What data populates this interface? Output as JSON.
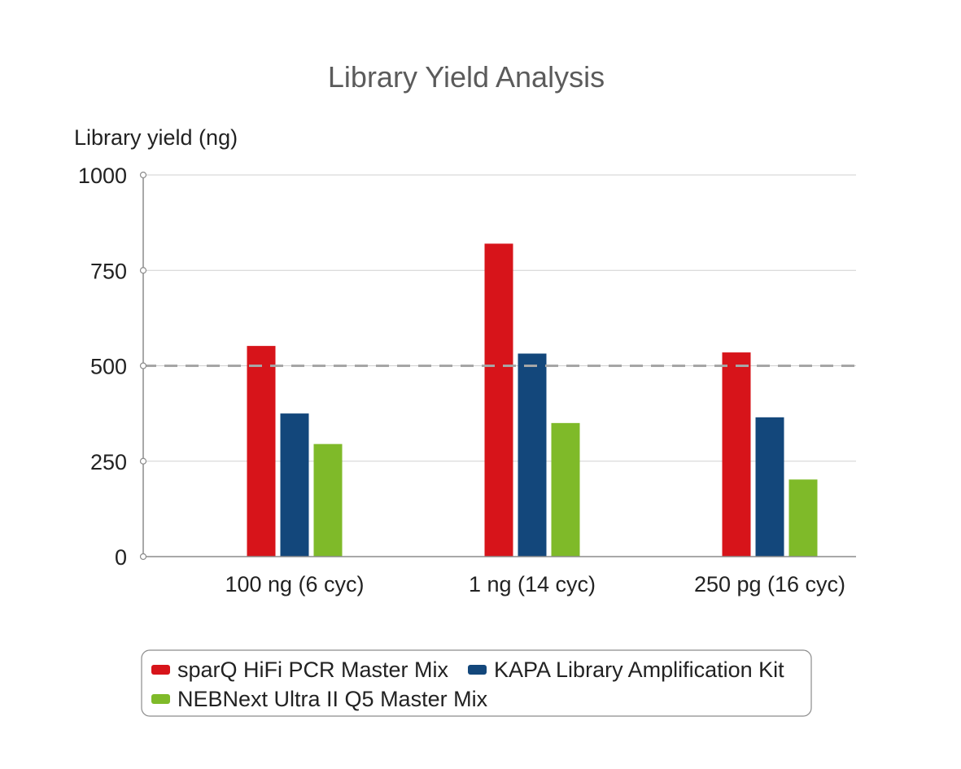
{
  "chart_data": {
    "type": "bar",
    "title": "Library Yield Analysis",
    "xlabel": "",
    "ylabel": "Library yield (ng)",
    "ylim": [
      0,
      1000
    ],
    "yticks": [
      0,
      250,
      500,
      750,
      1000
    ],
    "categories": [
      "100 ng (6 cyc)",
      "1 ng (14 cyc)",
      "250 pg (16 cyc)"
    ],
    "series": [
      {
        "name": "sparQ HiFi PCR Master Mix",
        "color": "#d7141a",
        "values": [
          552,
          820,
          535
        ]
      },
      {
        "name": "KAPA Library Amplification Kit",
        "color": "#13477b",
        "values": [
          375,
          532,
          365
        ]
      },
      {
        "name": "NEBNext Ultra II Q5 Master Mix",
        "color": "#7fba29",
        "values": [
          295,
          350,
          202
        ]
      }
    ],
    "reference_line": {
      "value": 500,
      "style": "dashed",
      "color": "#a6a6a6"
    },
    "grid": true,
    "legend_position": "bottom"
  }
}
